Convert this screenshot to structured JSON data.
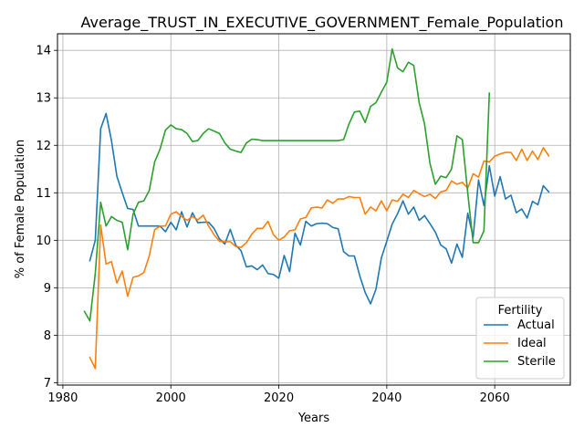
{
  "chart_data": {
    "type": "line",
    "title": "Average_TRUST_IN_EXECUTIVE_GOVERNMENT_Female_Population",
    "xlabel": "Years",
    "ylabel": "% of Female Population",
    "xlim": [
      1979,
      2074
    ],
    "ylim": [
      6.95,
      14.35
    ],
    "xticks": [
      1980,
      2000,
      2020,
      2040,
      2060
    ],
    "yticks": [
      7,
      8,
      9,
      10,
      11,
      12,
      13,
      14
    ],
    "grid": true,
    "legend": {
      "title": "Fertility",
      "position": "bottom-right"
    },
    "series": [
      {
        "name": "Actual",
        "color": "#1f77b4",
        "x": [
          1985,
          1986,
          1987,
          1988,
          1989,
          1990,
          1991,
          1992,
          1993,
          1994,
          1995,
          1996,
          1997,
          1998,
          1999,
          2000,
          2001,
          2002,
          2003,
          2004,
          2005,
          2006,
          2007,
          2008,
          2009,
          2010,
          2011,
          2012,
          2013,
          2014,
          2015,
          2016,
          2017,
          2018,
          2019,
          2020,
          2021,
          2022,
          2023,
          2024,
          2025,
          2026,
          2027,
          2028,
          2029,
          2030,
          2031,
          2032,
          2033,
          2034,
          2035,
          2036,
          2037,
          2038,
          2039,
          2040,
          2041,
          2042,
          2043,
          2044,
          2045,
          2046,
          2047,
          2048,
          2049,
          2050,
          2051,
          2052,
          2053,
          2054,
          2055,
          2056,
          2057,
          2058,
          2059,
          2060,
          2061,
          2062,
          2063,
          2064,
          2065,
          2066,
          2067,
          2068,
          2069,
          2070
        ],
        "y": [
          9.57,
          10.0,
          12.35,
          12.67,
          12.1,
          11.35,
          11.0,
          10.67,
          10.65,
          10.3,
          10.3,
          10.3,
          10.3,
          10.3,
          10.18,
          10.38,
          10.22,
          10.6,
          10.28,
          10.58,
          10.37,
          10.38,
          10.38,
          10.25,
          10.03,
          9.92,
          10.23,
          9.9,
          9.78,
          9.44,
          9.46,
          9.38,
          9.48,
          9.3,
          9.28,
          9.2,
          9.68,
          9.34,
          10.15,
          9.9,
          10.4,
          10.3,
          10.35,
          10.36,
          10.35,
          10.27,
          10.24,
          9.76,
          9.67,
          9.67,
          9.25,
          8.9,
          8.66,
          8.97,
          9.63,
          9.98,
          10.34,
          10.56,
          10.83,
          10.55,
          10.7,
          10.42,
          10.52,
          10.35,
          10.17,
          9.9,
          9.82,
          9.52,
          9.92,
          9.64,
          10.57,
          10.07,
          11.27,
          10.73,
          11.57,
          10.93,
          11.34,
          10.87,
          10.95,
          10.58,
          10.66,
          10.47,
          10.82,
          10.75,
          11.15,
          11.02
        ]
      },
      {
        "name": "Ideal",
        "color": "#ff7f0e",
        "x": [
          1985,
          1986,
          1987,
          1988,
          1989,
          1990,
          1991,
          1992,
          1993,
          1994,
          1995,
          1996,
          1997,
          1998,
          1999,
          2000,
          2001,
          2002,
          2003,
          2004,
          2005,
          2006,
          2007,
          2008,
          2009,
          2010,
          2011,
          2012,
          2013,
          2014,
          2015,
          2016,
          2017,
          2018,
          2019,
          2020,
          2021,
          2022,
          2023,
          2024,
          2025,
          2026,
          2027,
          2028,
          2029,
          2030,
          2031,
          2032,
          2033,
          2034,
          2035,
          2036,
          2037,
          2038,
          2039,
          2040,
          2041,
          2042,
          2043,
          2044,
          2045,
          2046,
          2047,
          2048,
          2049,
          2050,
          2051,
          2052,
          2053,
          2054,
          2055,
          2056,
          2057,
          2058,
          2059,
          2060,
          2061,
          2062,
          2063,
          2064,
          2065,
          2066,
          2067,
          2068,
          2069,
          2070
        ],
        "y": [
          7.53,
          7.3,
          10.32,
          9.5,
          9.55,
          9.1,
          9.35,
          8.82,
          9.22,
          9.25,
          9.32,
          9.67,
          10.22,
          10.3,
          10.3,
          10.55,
          10.6,
          10.5,
          10.42,
          10.5,
          10.43,
          10.53,
          10.3,
          10.12,
          9.98,
          9.97,
          9.97,
          9.87,
          9.85,
          9.95,
          10.13,
          10.25,
          10.25,
          10.4,
          10.12,
          10.0,
          10.07,
          10.2,
          10.22,
          10.45,
          10.48,
          10.68,
          10.7,
          10.68,
          10.85,
          10.78,
          10.87,
          10.87,
          10.92,
          10.9,
          10.9,
          10.55,
          10.7,
          10.62,
          10.83,
          10.62,
          10.85,
          10.82,
          10.97,
          10.9,
          11.05,
          10.98,
          10.92,
          10.97,
          10.88,
          11.02,
          11.05,
          11.25,
          11.18,
          11.22,
          11.1,
          11.4,
          11.33,
          11.67,
          11.65,
          11.77,
          11.82,
          11.85,
          11.85,
          11.68,
          11.92,
          11.68,
          11.88,
          11.7,
          11.95,
          11.78
        ]
      },
      {
        "name": "Sterile",
        "color": "#2ca02c",
        "x": [
          1984,
          1985,
          1986,
          1987,
          1988,
          1989,
          1990,
          1991,
          1992,
          1993,
          1994,
          1995,
          1996,
          1997,
          1998,
          1999,
          2000,
          2001,
          2002,
          2003,
          2004,
          2005,
          2006,
          2007,
          2008,
          2009,
          2010,
          2011,
          2012,
          2013,
          2014,
          2015,
          2016,
          2017,
          2018,
          2019,
          2020,
          2021,
          2022,
          2023,
          2024,
          2025,
          2026,
          2027,
          2028,
          2029,
          2030,
          2031,
          2032,
          2033,
          2034,
          2035,
          2036,
          2037,
          2038,
          2039,
          2040,
          2041,
          2042,
          2043,
          2044,
          2045,
          2046,
          2047,
          2048,
          2049,
          2050,
          2051,
          2052,
          2053,
          2054,
          2055,
          2056,
          2057,
          2058,
          2059
        ],
        "y": [
          8.5,
          8.3,
          9.3,
          10.8,
          10.3,
          10.5,
          10.42,
          10.38,
          9.8,
          10.55,
          10.8,
          10.83,
          11.05,
          11.65,
          11.92,
          12.32,
          12.43,
          12.35,
          12.33,
          12.25,
          12.08,
          12.1,
          12.25,
          12.35,
          12.3,
          12.25,
          12.05,
          11.92,
          11.88,
          11.85,
          12.05,
          12.13,
          12.12,
          12.1,
          12.1,
          12.1,
          12.1,
          12.1,
          12.1,
          12.1,
          12.1,
          12.1,
          12.1,
          12.1,
          12.1,
          12.1,
          12.1,
          12.1,
          12.12,
          12.45,
          12.7,
          12.72,
          12.48,
          12.82,
          12.9,
          13.12,
          13.33,
          14.03,
          13.63,
          13.55,
          13.75,
          13.68,
          12.9,
          12.45,
          11.62,
          11.18,
          11.35,
          11.32,
          11.5,
          12.2,
          12.12,
          11.0,
          9.95,
          9.95,
          10.2,
          13.1
        ]
      }
    ]
  }
}
